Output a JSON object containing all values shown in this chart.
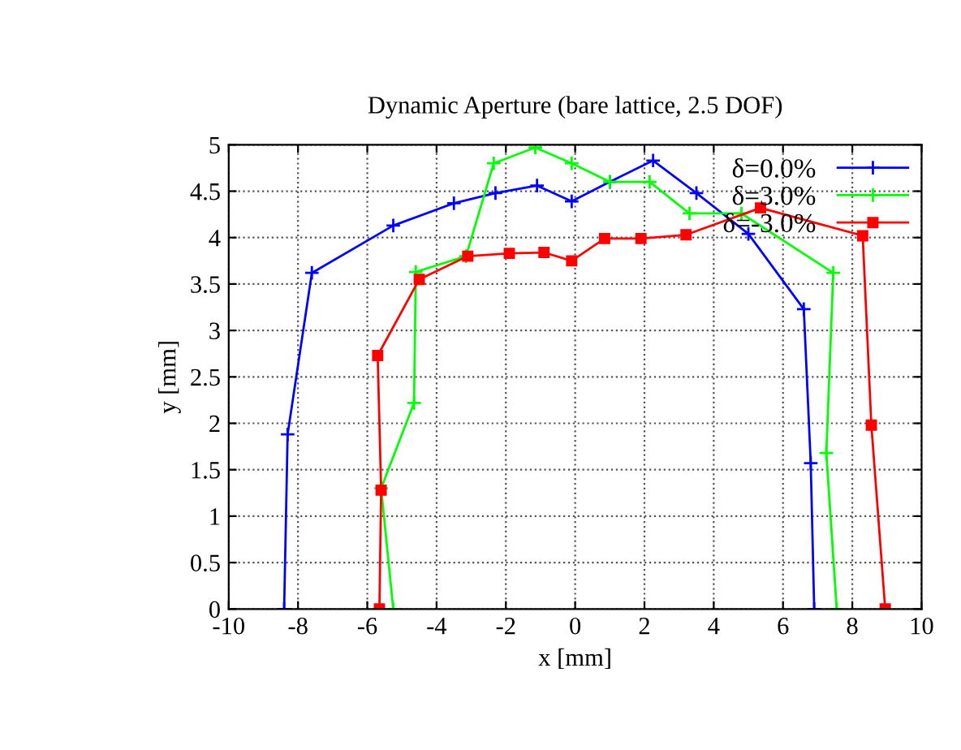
{
  "chart_data": {
    "type": "line",
    "title": "Dynamic Aperture (bare lattice, 2.5 DOF)",
    "xlabel": "x [mm]",
    "ylabel": "y [mm]",
    "xlim": [
      -10,
      10
    ],
    "xticks": [
      -10,
      -8,
      -6,
      -4,
      -2,
      0,
      2,
      4,
      6,
      8,
      10
    ],
    "ylim": [
      0,
      5
    ],
    "yticks": [
      0,
      0.5,
      1,
      1.5,
      2,
      2.5,
      3,
      3.5,
      4,
      4.5,
      5
    ],
    "grid": true,
    "legend": "top right",
    "line_style": "solid",
    "series": [
      {
        "name": "δ=0.0%",
        "color": "#0000ff",
        "marker": "cross",
        "x": [
          -8.4,
          -8.3,
          -7.6,
          -5.25,
          -3.5,
          -2.3,
          -1.1,
          -0.1,
          1.0,
          2.25,
          3.5,
          5.0,
          6.6,
          6.8,
          6.9
        ],
        "values": [
          0,
          1.88,
          3.62,
          4.13,
          4.37,
          4.48,
          4.56,
          4.39,
          4.6,
          4.83,
          4.48,
          4.04,
          3.23,
          1.57,
          0
        ]
      },
      {
        "name": "δ=3.0%",
        "color": "#00ff00",
        "marker": "cross",
        "x": [
          -5.25,
          -5.6,
          -4.65,
          -4.6,
          -3.15,
          -2.35,
          -1.15,
          -0.1,
          1.0,
          2.15,
          3.3,
          4.8,
          7.45,
          7.25,
          7.55
        ],
        "values": [
          0,
          1.3,
          2.22,
          3.63,
          3.8,
          4.8,
          4.97,
          4.8,
          4.6,
          4.6,
          4.26,
          4.26,
          3.62,
          1.68,
          0
        ]
      },
      {
        "name": "δ=-3.0%",
        "color": "#ff0000",
        "marker": "square",
        "x": [
          -5.65,
          -5.6,
          -5.7,
          -4.5,
          -3.1,
          -1.9,
          -0.9,
          -0.1,
          0.85,
          1.9,
          3.2,
          5.35,
          8.3,
          8.55,
          8.95
        ],
        "values": [
          0,
          1.28,
          2.73,
          3.55,
          3.8,
          3.83,
          3.84,
          3.75,
          3.99,
          3.99,
          4.03,
          4.32,
          4.02,
          1.98,
          0
        ]
      }
    ]
  }
}
